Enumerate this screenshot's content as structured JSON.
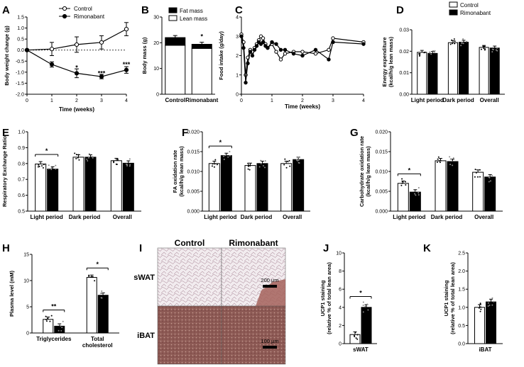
{
  "chart_data": [
    {
      "panel": "A",
      "type": "line",
      "xlabel": "Time (weeks)",
      "ylabel": "Body weight change (g)",
      "xlim": [
        0,
        4
      ],
      "ylim": [
        -2.0,
        1.5
      ],
      "xticks": [
        "0",
        "1",
        "2",
        "3",
        "4"
      ],
      "yticks": [
        "-2.0",
        "-1.5",
        "-1.0",
        "-0.5",
        "0.0",
        "0.5",
        "1.0",
        "1.5"
      ],
      "legend_position": "top-right",
      "series": [
        {
          "name": "Control",
          "marker": "open-circle",
          "x": [
            0,
            1,
            2,
            3,
            4
          ],
          "y": [
            0,
            0.05,
            0.25,
            0.35,
            0.95
          ],
          "err": [
            0,
            0.3,
            0.35,
            0.3,
            0.3
          ]
        },
        {
          "name": "Rimonabant",
          "marker": "filled-circle",
          "x": [
            0,
            1,
            2,
            3,
            4
          ],
          "y": [
            0,
            -0.65,
            -1.05,
            -1.2,
            -0.9
          ],
          "err": [
            0,
            0.12,
            0.2,
            0.1,
            0.15
          ]
        }
      ],
      "annotations": [
        {
          "x": 2,
          "y": -0.8,
          "text": "*"
        },
        {
          "x": 3,
          "y": -1.05,
          "text": "***"
        },
        {
          "x": 4,
          "y": -0.65,
          "text": "***"
        }
      ]
    },
    {
      "panel": "B",
      "type": "bar",
      "ylabel": "Body mass (g)",
      "ylim": [
        0,
        30
      ],
      "yticks": [
        "0",
        "10",
        "20",
        "30"
      ],
      "categories": [
        "Control",
        "Rimonabant"
      ],
      "series": [
        {
          "name": "Lean mass",
          "values": [
            19.0,
            17.8
          ]
        },
        {
          "name": "Fat mass",
          "values": [
            3.0,
            1.6
          ]
        }
      ],
      "legend_position": "top-right",
      "annotations": [
        {
          "category": "Rimonabant",
          "text": "*"
        }
      ]
    },
    {
      "panel": "C",
      "type": "line",
      "xlabel": "Time (weeks)",
      "ylabel": "Food intake (g/day)",
      "xlim": [
        0,
        4
      ],
      "ylim": [
        0,
        4
      ],
      "xticks": [
        "0",
        "1",
        "2",
        "3",
        "4"
      ],
      "yticks": [
        "0",
        "1",
        "2",
        "3",
        "4"
      ],
      "series": [
        {
          "name": "Control",
          "marker": "open-circle",
          "x": [
            0,
            0.07,
            0.14,
            0.21,
            0.29,
            0.36,
            0.43,
            0.5,
            0.57,
            0.64,
            0.71,
            0.79,
            0.86,
            1.0,
            1.14,
            1.29,
            1.43,
            1.71,
            2.0,
            2.43,
            2.86,
            3.0,
            4.0
          ],
          "y": [
            3.1,
            2.7,
            1.0,
            1.9,
            2.3,
            2.2,
            2.4,
            2.6,
            2.8,
            3.0,
            2.9,
            2.6,
            2.4,
            2.6,
            2.2,
            1.8,
            2.1,
            2.2,
            2.2,
            2.1,
            2.3,
            2.9,
            2.7
          ]
        },
        {
          "name": "Rimonabant",
          "marker": "filled-circle",
          "x": [
            0,
            0.07,
            0.14,
            0.21,
            0.29,
            0.36,
            0.43,
            0.5,
            0.57,
            0.64,
            0.71,
            0.79,
            0.86,
            1.0,
            1.14,
            1.29,
            1.43,
            1.71,
            2.0,
            2.43,
            2.86,
            3.0,
            4.0
          ],
          "y": [
            3.0,
            2.4,
            0.6,
            1.6,
            2.2,
            2.0,
            2.3,
            2.5,
            2.7,
            2.6,
            2.7,
            2.5,
            2.4,
            2.7,
            2.6,
            2.3,
            2.3,
            2.1,
            2.0,
            2.3,
            1.8,
            2.7,
            2.6
          ]
        }
      ]
    },
    {
      "panel": "D",
      "type": "bar",
      "ylabel": "Energy expenditure (kcal/h/g lean mass)",
      "ylim": [
        0,
        0.03
      ],
      "yticks": [
        "0.00",
        "0.01",
        "0.02",
        "0.03"
      ],
      "categories": [
        "Light period",
        "Dark period",
        "Overall"
      ],
      "series": [
        {
          "name": "Control",
          "values": [
            0.0195,
            0.024,
            0.0218
          ]
        },
        {
          "name": "Rimonabant",
          "values": [
            0.019,
            0.0242,
            0.0215
          ]
        }
      ],
      "legend_position": "top-right"
    },
    {
      "panel": "E",
      "type": "bar",
      "ylabel": "Respiratory Exchange Ratio",
      "ylim": [
        0.5,
        1.0
      ],
      "yticks": [
        "0.5",
        "0.6",
        "0.7",
        "0.8",
        "0.9",
        "1.0"
      ],
      "categories": [
        "Light period",
        "Dark period",
        "Overall"
      ],
      "series": [
        {
          "name": "Control",
          "values": [
            0.797,
            0.84,
            0.818
          ]
        },
        {
          "name": "Rimonabant",
          "values": [
            0.765,
            0.84,
            0.802
          ]
        }
      ],
      "annotations": [
        {
          "category": "Light period",
          "text": "*"
        }
      ]
    },
    {
      "panel": "F",
      "type": "bar",
      "ylabel": "FA oxidation rate (kcal/h/g lean mass)",
      "ylim": [
        0,
        0.02
      ],
      "yticks": [
        "0.000",
        "0.005",
        "0.010",
        "0.015",
        "0.020"
      ],
      "categories": [
        "Light period",
        "Dark period",
        "Overall"
      ],
      "series": [
        {
          "name": "Control",
          "values": [
            0.012,
            0.0115,
            0.012
          ]
        },
        {
          "name": "Rimonabant",
          "values": [
            0.014,
            0.012,
            0.013
          ]
        }
      ],
      "annotations": [
        {
          "category": "Light period",
          "text": "*"
        }
      ]
    },
    {
      "panel": "G",
      "type": "bar",
      "ylabel": "Carbohydrate oxidation rate (kcal/h/g lean mass)",
      "ylim": [
        0,
        0.02
      ],
      "yticks": [
        "0.000",
        "0.005",
        "0.010",
        "0.015",
        "0.020"
      ],
      "categories": [
        "Light period",
        "Dark period",
        "Overall"
      ],
      "series": [
        {
          "name": "Control",
          "values": [
            0.007,
            0.0127,
            0.0098
          ]
        },
        {
          "name": "Rimonabant",
          "values": [
            0.0048,
            0.0125,
            0.0086
          ]
        }
      ],
      "annotations": [
        {
          "category": "Light period",
          "text": "*"
        }
      ]
    },
    {
      "panel": "H",
      "type": "bar",
      "ylabel": "Plasma level (mM)",
      "ylim": [
        0,
        15
      ],
      "yticks": [
        "0",
        "5",
        "10",
        "15"
      ],
      "categories": [
        "Triglycerides",
        "Total cholesterol"
      ],
      "series": [
        {
          "name": "Control",
          "values": [
            2.6,
            10.6
          ]
        },
        {
          "name": "Rimonabant",
          "values": [
            1.3,
            7.2
          ]
        }
      ],
      "annotations": [
        {
          "category": "Triglycerides",
          "text": "**"
        },
        {
          "category": "Total cholesterol",
          "text": "*"
        }
      ]
    },
    {
      "panel": "J",
      "type": "bar",
      "ylabel": "UCP1 staining (relative % of total lean area)",
      "ylim": [
        0,
        10
      ],
      "yticks": [
        "0",
        "2",
        "4",
        "6",
        "8",
        "10"
      ],
      "categories": [
        "sWAT"
      ],
      "series": [
        {
          "name": "Control",
          "values": [
            1.0
          ]
        },
        {
          "name": "Rimonabant",
          "values": [
            4.0
          ]
        }
      ],
      "annotations": [
        {
          "category": "sWAT",
          "text": "*"
        }
      ]
    },
    {
      "panel": "K",
      "type": "bar",
      "ylabel": "UCP1 staining (relative % of total lean area)",
      "ylim": [
        0,
        2.5
      ],
      "yticks": [
        "0.0",
        "0.5",
        "1.0",
        "1.5",
        "2.0",
        "2.5"
      ],
      "categories": [
        "iBAT"
      ],
      "series": [
        {
          "name": "Control",
          "values": [
            1.0
          ]
        },
        {
          "name": "Rimonabant",
          "values": [
            1.15
          ]
        }
      ]
    }
  ],
  "micrograph": {
    "panel": "I",
    "columns": [
      "Control",
      "Rimonabant"
    ],
    "rows": [
      "sWAT",
      "iBAT"
    ],
    "scale_bars": [
      "200 µm",
      "100 µm"
    ]
  }
}
